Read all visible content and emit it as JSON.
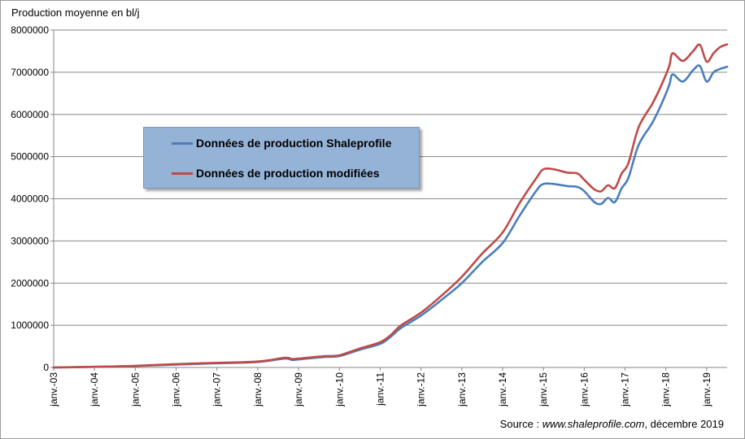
{
  "page": {
    "y_axis_title": "Production moyenne en bl/j",
    "source_prefix": "Source : ",
    "source_site": "www.shaleprofile.com",
    "source_suffix": ", décembre 2019"
  },
  "colors": {
    "shaleprofile": "#4a7ebb",
    "modified": "#be4b48",
    "legend_bg": "#95b3d7",
    "grid": "#868686"
  },
  "chart_data": {
    "type": "line",
    "title": "",
    "ylabel": "Production moyenne en bl/j",
    "xlabel": "",
    "ylim": [
      0,
      8000000
    ],
    "y_ticks": [
      "0",
      "1000000",
      "2000000",
      "3000000",
      "4000000",
      "5000000",
      "6000000",
      "7000000",
      "8000000"
    ],
    "x_ticks": [
      "janv.-03",
      "janv.-04",
      "janv.-05",
      "janv.-06",
      "janv.-07",
      "janv.-08",
      "janv.-09",
      "janv.-10",
      "janv.-11",
      "janv.-12",
      "janv.-13",
      "janv.-14",
      "janv.-15",
      "janv.-16",
      "janv.-17",
      "janv.-18",
      "janv.-19"
    ],
    "x_range": [
      "2003-01",
      "2019-07"
    ],
    "grid": "horizontal",
    "legend_position": "center-left",
    "x": [
      "2003-01",
      "2004-01",
      "2005-01",
      "2006-01",
      "2007-01",
      "2008-01",
      "2008-09",
      "2008-11",
      "2009-01",
      "2009-06",
      "2009-09",
      "2010-01",
      "2010-07",
      "2011-01",
      "2011-04",
      "2011-07",
      "2012-01",
      "2012-07",
      "2013-01",
      "2013-07",
      "2014-01",
      "2014-06",
      "2014-11",
      "2015-01",
      "2015-04",
      "2015-08",
      "2015-11",
      "2016-01",
      "2016-04",
      "2016-06",
      "2016-08",
      "2016-10",
      "2016-12",
      "2017-02",
      "2017-05",
      "2017-09",
      "2017-12",
      "2018-02",
      "2018-03",
      "2018-06",
      "2018-09",
      "2018-11",
      "2019-01",
      "2019-03",
      "2019-05",
      "2019-07"
    ],
    "series": [
      {
        "name": "Données de production Shaleprofile",
        "color": "#4a7ebb",
        "values": [
          0,
          15000,
          35000,
          70000,
          100000,
          130000,
          210000,
          180000,
          190000,
          230000,
          250000,
          270000,
          420000,
          560000,
          720000,
          930000,
          1230000,
          1600000,
          2000000,
          2500000,
          2950000,
          3600000,
          4200000,
          4350000,
          4350000,
          4300000,
          4280000,
          4180000,
          3920000,
          3880000,
          4020000,
          3920000,
          4250000,
          4500000,
          5280000,
          5800000,
          6300000,
          6700000,
          6950000,
          6780000,
          7050000,
          7150000,
          6780000,
          7000000,
          7080000,
          7130000
        ]
      },
      {
        "name": "Données de production modifiées",
        "color": "#be4b48",
        "values": [
          0,
          16000,
          38000,
          80000,
          110000,
          140000,
          230000,
          200000,
          210000,
          250000,
          270000,
          290000,
          450000,
          600000,
          760000,
          990000,
          1300000,
          1700000,
          2150000,
          2700000,
          3200000,
          3900000,
          4500000,
          4700000,
          4700000,
          4620000,
          4600000,
          4450000,
          4220000,
          4180000,
          4320000,
          4250000,
          4600000,
          4850000,
          5700000,
          6250000,
          6750000,
          7150000,
          7450000,
          7270000,
          7500000,
          7650000,
          7250000,
          7450000,
          7600000,
          7660000
        ]
      }
    ]
  }
}
